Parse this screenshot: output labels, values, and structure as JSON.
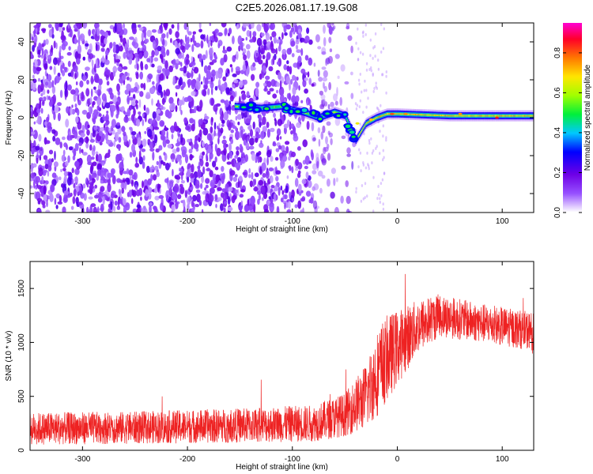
{
  "title": "C2E5.2026.081.17.19.G08",
  "chart_data": [
    {
      "type": "heatmap",
      "name": "spectrogram",
      "xlabel": "Height of straight line (km)",
      "ylabel": "Frequency (Hz)",
      "xlim": [
        -350,
        130
      ],
      "ylim": [
        -50,
        50
      ],
      "xticks": [
        -300,
        -200,
        -100,
        0,
        100
      ],
      "yticks": [
        -40,
        -20,
        0,
        20,
        40
      ],
      "ridge": {
        "description_points": [
          [
            -155,
            6
          ],
          [
            -130,
            5
          ],
          [
            -110,
            6
          ],
          [
            -100,
            4
          ],
          [
            -90,
            3
          ],
          [
            -75,
            0
          ],
          [
            -60,
            3
          ],
          [
            -50,
            1
          ],
          [
            -45,
            -5
          ],
          [
            -40,
            -12
          ],
          [
            -30,
            -3
          ],
          [
            -20,
            0
          ],
          [
            -10,
            2
          ],
          [
            0,
            2
          ],
          [
            50,
            1
          ],
          [
            100,
            1
          ],
          [
            130,
            1
          ]
        ],
        "max_amplitude": 0.9
      },
      "colorbar": {
        "label": "Normalized spectral amplitude",
        "range": [
          0.0,
          0.95
        ],
        "ticks": [
          0.0,
          0.2,
          0.4,
          0.6,
          0.8
        ],
        "tick_labels": [
          "0.0",
          "0.2",
          "0.4",
          "0.6",
          "0.8"
        ]
      }
    },
    {
      "type": "line",
      "name": "snr",
      "xlabel": "Height of straight line (km)",
      "ylabel": "SNR (10 * v/v)",
      "xlim": [
        -350,
        130
      ],
      "ylim": [
        0,
        1750
      ],
      "xticks": [
        -300,
        -200,
        -100,
        0,
        100
      ],
      "yticks": [
        0,
        500,
        1000,
        1500
      ],
      "color": "#ee2222",
      "envelope": [
        {
          "x": -350,
          "mean": 200,
          "spread": 150
        },
        {
          "x": -250,
          "mean": 210,
          "spread": 150
        },
        {
          "x": -150,
          "mean": 230,
          "spread": 160
        },
        {
          "x": -80,
          "mean": 250,
          "spread": 170
        },
        {
          "x": -50,
          "mean": 330,
          "spread": 200
        },
        {
          "x": -30,
          "mean": 500,
          "spread": 300
        },
        {
          "x": -20,
          "mean": 700,
          "spread": 400
        },
        {
          "x": -10,
          "mean": 850,
          "spread": 400
        },
        {
          "x": 0,
          "mean": 950,
          "spread": 350
        },
        {
          "x": 20,
          "mean": 1150,
          "spread": 250
        },
        {
          "x": 40,
          "mean": 1250,
          "spread": 200
        },
        {
          "x": 80,
          "mean": 1180,
          "spread": 180
        },
        {
          "x": 130,
          "mean": 1100,
          "spread": 180
        }
      ]
    }
  ]
}
